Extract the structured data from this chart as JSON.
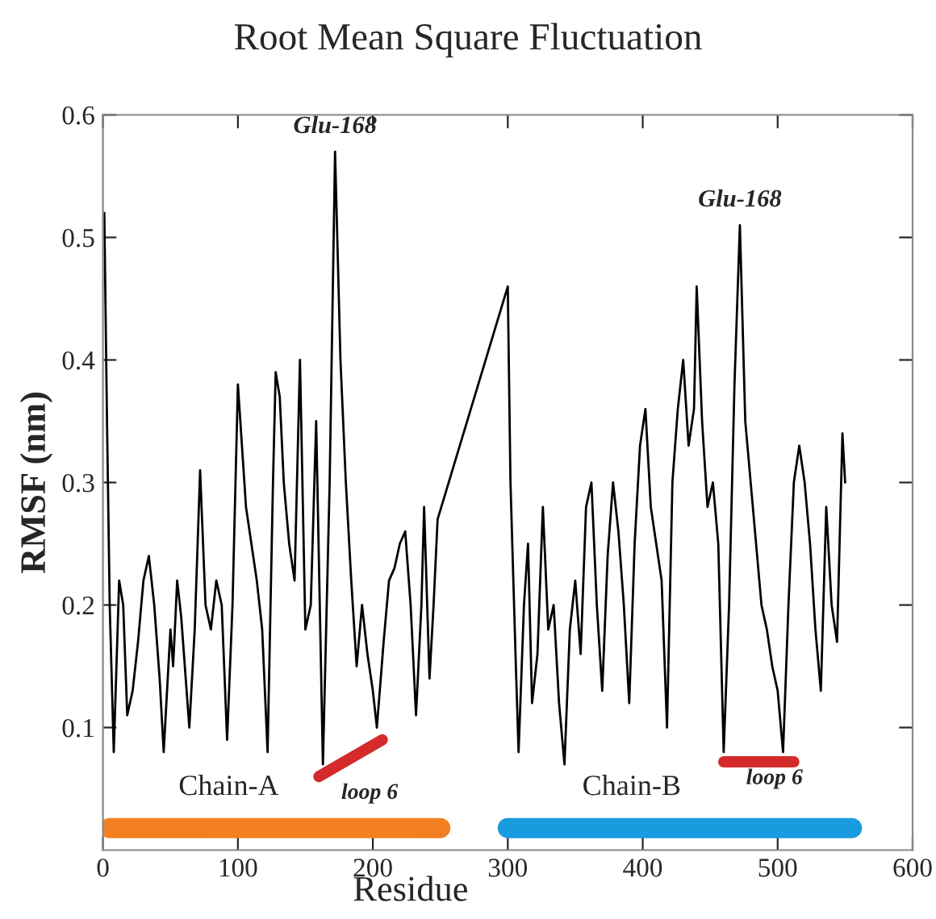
{
  "chart_data": {
    "type": "line",
    "title": "Root Mean Square Fluctuation",
    "xlabel": "Residue",
    "ylabel": "RMSF (nm)",
    "xlim": [
      0,
      600
    ],
    "xticks": [
      0,
      100,
      200,
      300,
      400,
      500,
      600
    ],
    "ylim": [
      0,
      0.6
    ],
    "yticks": [
      0.1,
      0.2,
      0.3,
      0.4,
      0.5,
      0.6
    ],
    "grid": false,
    "marker": "none",
    "line_style": "solid",
    "series": [
      {
        "color": "#000000",
        "x": [
          1,
          3,
          5,
          8,
          12,
          15,
          18,
          22,
          26,
          30,
          34,
          38,
          42,
          45,
          50,
          52,
          55,
          58,
          62,
          64,
          68,
          72,
          76,
          80,
          84,
          88,
          92,
          96,
          100,
          103,
          106,
          110,
          114,
          118,
          122,
          126,
          128,
          131,
          134,
          138,
          142,
          146,
          150,
          154,
          158,
          163,
          168,
          172,
          176,
          180,
          184,
          188,
          192,
          196,
          200,
          203,
          208,
          212,
          216,
          220,
          224,
          228,
          232,
          236,
          238,
          242,
          245,
          248,
          300,
          302,
          306,
          308,
          312,
          315,
          318,
          322,
          326,
          330,
          334,
          338,
          342,
          346,
          350,
          354,
          358,
          362,
          366,
          370,
          374,
          378,
          382,
          386,
          390,
          394,
          398,
          402,
          406,
          410,
          414,
          418,
          422,
          426,
          430,
          434,
          438,
          440,
          444,
          448,
          452,
          456,
          460,
          464,
          468,
          472,
          476,
          480,
          484,
          488,
          492,
          496,
          500,
          504,
          508,
          512,
          516,
          520,
          524,
          528,
          532,
          536,
          540,
          544,
          548,
          550
        ],
        "values": [
          0.52,
          0.35,
          0.2,
          0.08,
          0.22,
          0.2,
          0.11,
          0.13,
          0.17,
          0.22,
          0.24,
          0.2,
          0.14,
          0.08,
          0.18,
          0.15,
          0.22,
          0.19,
          0.13,
          0.1,
          0.18,
          0.31,
          0.2,
          0.18,
          0.22,
          0.2,
          0.09,
          0.2,
          0.38,
          0.33,
          0.28,
          0.25,
          0.22,
          0.18,
          0.08,
          0.3,
          0.39,
          0.37,
          0.3,
          0.25,
          0.22,
          0.4,
          0.18,
          0.2,
          0.35,
          0.07,
          0.3,
          0.57,
          0.4,
          0.3,
          0.22,
          0.15,
          0.2,
          0.16,
          0.13,
          0.1,
          0.17,
          0.22,
          0.23,
          0.25,
          0.26,
          0.2,
          0.11,
          0.2,
          0.28,
          0.14,
          0.2,
          0.27,
          0.46,
          0.3,
          0.15,
          0.08,
          0.2,
          0.25,
          0.12,
          0.16,
          0.28,
          0.18,
          0.2,
          0.12,
          0.07,
          0.18,
          0.22,
          0.16,
          0.28,
          0.3,
          0.2,
          0.13,
          0.24,
          0.3,
          0.26,
          0.2,
          0.12,
          0.25,
          0.33,
          0.36,
          0.28,
          0.25,
          0.22,
          0.1,
          0.3,
          0.36,
          0.4,
          0.33,
          0.36,
          0.46,
          0.35,
          0.28,
          0.3,
          0.25,
          0.08,
          0.2,
          0.38,
          0.51,
          0.35,
          0.3,
          0.25,
          0.2,
          0.18,
          0.15,
          0.13,
          0.08,
          0.2,
          0.3,
          0.33,
          0.3,
          0.25,
          0.18,
          0.13,
          0.28,
          0.2,
          0.17,
          0.34,
          0.3
        ]
      },
      {
        "name": "loop 6",
        "color": "#d42a2a",
        "x": [
          160,
          207
        ],
        "values": [
          0.06,
          0.09
        ]
      },
      {
        "name": "loop 6",
        "color": "#d42a2a",
        "x": [
          460,
          512
        ],
        "values": [
          0.072,
          0.072
        ]
      },
      {
        "name": "Chain-A",
        "color": "#f28022",
        "x": [
          5,
          250
        ],
        "values": [
          0.018,
          0.018
        ]
      },
      {
        "name": "Chain-B",
        "color": "#1a9be0",
        "x": [
          300,
          555
        ],
        "values": [
          0.018,
          0.018
        ]
      }
    ],
    "annotations": [
      {
        "text": "Glu-168",
        "x": 172,
        "y": 0.57
      },
      {
        "text": "Glu-168",
        "x": 472,
        "y": 0.51
      }
    ]
  }
}
